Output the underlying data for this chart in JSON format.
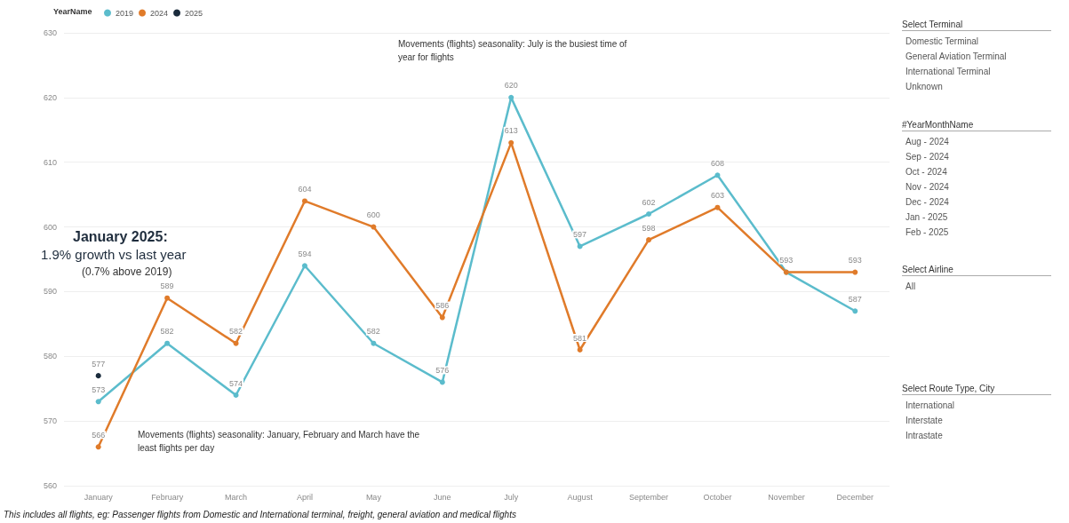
{
  "chart_data": [
    {
      "type": "line",
      "legend_title": "YearName",
      "legend": "top left",
      "categories": [
        "January",
        "February",
        "March",
        "April",
        "May",
        "June",
        "July",
        "August",
        "September",
        "October",
        "November",
        "December"
      ],
      "series": [
        {
          "name": "2019",
          "color": "#5bbccc",
          "values": [
            573,
            582,
            574,
            594,
            582,
            576,
            620,
            597,
            602,
            608,
            593,
            587
          ]
        },
        {
          "name": "2024",
          "color": "#e07b2a",
          "values": [
            566,
            589,
            582,
            604,
            600,
            586,
            613,
            581,
            598,
            603,
            593,
            593
          ],
          "value_labels": [
            "566",
            "589",
            "582",
            "604",
            "600",
            "586",
            "613",
            "581",
            "598",
            "603",
            null,
            "593"
          ]
        },
        {
          "name": "2025",
          "color": "#1a2b3c",
          "values": [
            577,
            null,
            null,
            null,
            null,
            null,
            null,
            null,
            null,
            null,
            null,
            null
          ]
        }
      ],
      "ylim": [
        560,
        630
      ],
      "yticks": [
        560,
        570,
        580,
        590,
        600,
        610,
        620,
        630
      ],
      "grid": "y",
      "marker": "circle",
      "data_labels": true,
      "annotations": [
        "January 2025:",
        "1.9% growth vs last year",
        "(0.7% above 2019)",
        "Movements (flights) seasonality: July is the busiest time of year for flights",
        "Movements (flights) seasonality: January, February and March have the least flights per day",
        "This includes all flights, eg: Passenger flights from Domestic and International terminal, freight, general aviation and medical flights"
      ]
    },
    {
      "type": "other",
      "title": "Select Terminal",
      "categories": [
        "Domestic Terminal",
        "General Aviation Terminal",
        "International Terminal",
        "Unknown"
      ]
    },
    {
      "type": "other",
      "title": "#YearMonthName",
      "categories": [
        "Aug - 2024",
        "Sep - 2024",
        "Oct - 2024",
        "Nov - 2024",
        "Dec - 2024",
        "Jan - 2025",
        "Feb - 2025"
      ]
    },
    {
      "type": "other",
      "title": "Select Airline",
      "categories": [
        "All"
      ]
    },
    {
      "type": "other",
      "title": "Select Route Type, City",
      "categories": [
        "International",
        "Interstate",
        "Intrastate"
      ]
    }
  ]
}
